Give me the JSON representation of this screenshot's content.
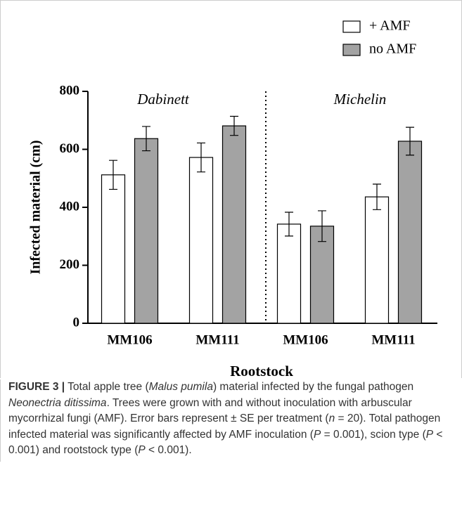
{
  "chart_data": {
    "type": "bar",
    "ylabel": "Infected material (cm)",
    "xlabel": "Rootstock",
    "group_labels": [
      "Dabinett",
      "Michelin"
    ],
    "categories": [
      "MM106",
      "MM111",
      "MM106",
      "MM111"
    ],
    "series": [
      {
        "name": "+ AMF",
        "color": "#ffffff",
        "values": [
          512,
          572,
          342,
          436
        ],
        "errors": [
          50,
          50,
          41,
          44
        ]
      },
      {
        "name": "no AMF",
        "color": "#a3a3a3",
        "values": [
          637,
          681,
          335,
          628
        ],
        "errors": [
          42,
          33,
          53,
          48
        ]
      }
    ],
    "ylim": [
      0,
      800
    ],
    "yticks": [
      0,
      200,
      400,
      600,
      800
    ],
    "legend": "top-right"
  },
  "caption": [
    "FIGURE 3 |",
    " Total apple tree (",
    "Malus pumila",
    ") material infected by the fungal pathogen ",
    "Neonectria ditissima",
    ". Trees were grown with and without inoculation with arbuscular mycorrhizal fungi (AMF). Error bars represent ± SE per treatment (",
    "n",
    " = 20). Total pathogen infected material was significantly affected by AMF inoculation (",
    "P",
    " = 0.001), scion type (",
    "P",
    " < 0.001) and rootstock type (",
    "P",
    " < 0.001)."
  ]
}
